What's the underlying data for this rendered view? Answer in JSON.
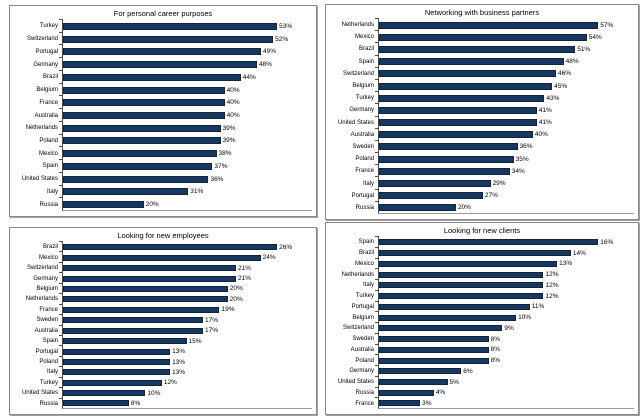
{
  "page": {
    "background": "#ffffff"
  },
  "style": {
    "bar_color": "#17375E",
    "bar_border_color": "#0f2440",
    "panel_border_color": "#8a8a8a",
    "axis_color": "#4d4d4d",
    "text_color": "#000000"
  },
  "chart_data": [
    {
      "type": "bar",
      "orientation": "horizontal",
      "position": "top-left",
      "title": "For personal career purposes",
      "unit": "%",
      "grid": false,
      "legend": false,
      "categories": [
        "Turkey",
        "Switzerland",
        "Portugal",
        "Germany",
        "Brazil",
        "Belgium",
        "France",
        "Australia",
        "Netherlands",
        "Poland",
        "Mexico",
        "Spain",
        "United States",
        "Italy",
        "Russia"
      ],
      "values": [
        53,
        52,
        49,
        48,
        44,
        40,
        40,
        40,
        39,
        39,
        38,
        37,
        36,
        31,
        20
      ]
    },
    {
      "type": "bar",
      "orientation": "horizontal",
      "position": "top-right",
      "title": "Networking with business partners",
      "unit": "%",
      "grid": false,
      "legend": false,
      "categories": [
        "Netherlands",
        "Mexico",
        "Brazil",
        "Spain",
        "Switzerland",
        "Belgium",
        "Turkey",
        "Germany",
        "United States",
        "Australia",
        "Sweden",
        "Poland",
        "France",
        "Italy",
        "Portugal",
        "Russia"
      ],
      "values": [
        57,
        54,
        51,
        48,
        46,
        45,
        43,
        41,
        41,
        40,
        36,
        35,
        34,
        29,
        27,
        20
      ]
    },
    {
      "type": "bar",
      "orientation": "horizontal",
      "position": "bottom-left",
      "title": "Looking for new employees",
      "unit": "%",
      "grid": false,
      "legend": false,
      "categories": [
        "Brazil",
        "Mexico",
        "Switzerland",
        "Germany",
        "Belgium",
        "Netherlands",
        "France",
        "Sweden",
        "Australia",
        "Spain",
        "Portugal",
        "Poland",
        "Italy",
        "Turkey",
        "United States",
        "Russia"
      ],
      "values": [
        26,
        24,
        21,
        21,
        20,
        20,
        19,
        17,
        17,
        15,
        13,
        13,
        13,
        12,
        10,
        8
      ]
    },
    {
      "type": "bar",
      "orientation": "horizontal",
      "position": "bottom-right",
      "title": "Looking for new clients",
      "unit": "%",
      "grid": false,
      "legend": false,
      "categories": [
        "Spain",
        "Brazil",
        "Mexico",
        "Netherlands",
        "Italy",
        "Turkey",
        "Portugal",
        "Belgium",
        "Switzerland",
        "Sweden",
        "Australia",
        "Poland",
        "Germany",
        "United States",
        "Russia",
        "France"
      ],
      "values": [
        16,
        14,
        13,
        12,
        12,
        12,
        11,
        10,
        9,
        8,
        8,
        8,
        6,
        5,
        4,
        3
      ]
    }
  ]
}
